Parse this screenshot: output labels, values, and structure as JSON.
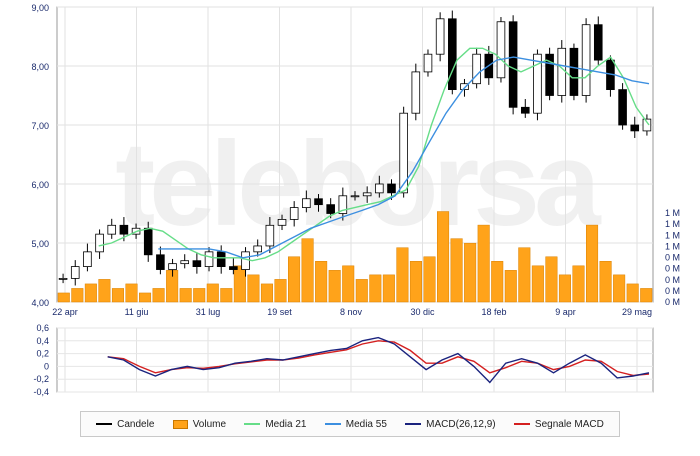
{
  "chart_data": [
    {
      "type": "candlestick",
      "name_in_legend": "Candele",
      "x_tick_labels": [
        "22 apr",
        "11 giu",
        "31 lug",
        "19 set",
        "8 nov",
        "30 dic",
        "18 feb",
        "9 apr",
        "29 mag"
      ],
      "y_tick_labels": [
        "9,00",
        "8,00",
        "7,00",
        "6,00",
        "5,00",
        "4,00"
      ],
      "ylim": [
        4.0,
        9.0
      ],
      "grid": true,
      "price_series_sampled": [
        4.4,
        4.6,
        4.85,
        5.15,
        5.3,
        5.15,
        5.25,
        4.8,
        4.55,
        4.65,
        4.7,
        4.6,
        4.85,
        4.6,
        4.55,
        4.85,
        4.95,
        5.3,
        5.4,
        5.6,
        5.75,
        5.65,
        5.5,
        5.8,
        5.8,
        5.85,
        6.0,
        5.85,
        7.2,
        7.9,
        8.2,
        8.8,
        7.6,
        7.7,
        8.2,
        7.8,
        8.75,
        7.3,
        7.2,
        8.2,
        7.5,
        8.3,
        7.5,
        8.7,
        8.1,
        7.6,
        7.0,
        6.9,
        7.1
      ]
    },
    {
      "type": "line",
      "series": [
        {
          "name": "Media 21",
          "color": "#66dd88",
          "values": [
            4.95,
            5.0,
            5.1,
            5.2,
            5.25,
            5.2,
            5.05,
            4.9,
            4.8,
            4.75,
            4.75,
            4.75,
            4.7,
            4.75,
            4.85,
            5.0,
            5.15,
            5.3,
            5.45,
            5.55,
            5.6,
            5.65,
            5.7,
            5.8,
            5.9,
            6.3,
            7.0,
            7.6,
            8.1,
            8.3,
            8.3,
            8.2,
            8.0,
            7.9,
            8.0,
            8.1,
            8.0,
            7.8,
            7.8,
            8.0,
            8.15,
            7.8,
            7.3,
            7.0
          ]
        },
        {
          "name": "Media 55",
          "color": "#3c8fe0",
          "values": [
            4.9,
            4.9,
            4.9,
            4.9,
            4.85,
            4.75,
            4.8,
            4.95,
            5.1,
            5.25,
            5.35,
            5.45,
            5.55,
            5.65,
            5.8,
            6.2,
            6.7,
            7.2,
            7.6,
            7.9,
            8.1,
            8.15,
            8.1,
            8.05,
            8.0,
            7.95,
            7.9,
            7.85,
            7.75,
            7.7
          ]
        }
      ]
    },
    {
      "type": "bar",
      "name": "Volume",
      "color": "#ffa31a",
      "y_tick_labels": [
        "1 M",
        "1 M",
        "1 M",
        "1 M",
        "0 M",
        "0 M",
        "0 M",
        "0 M",
        "0 M"
      ],
      "values": [
        0.1,
        0.15,
        0.2,
        0.25,
        0.15,
        0.2,
        0.1,
        0.15,
        0.35,
        0.15,
        0.15,
        0.2,
        0.15,
        0.4,
        0.3,
        0.2,
        0.25,
        0.5,
        0.7,
        0.45,
        0.35,
        0.4,
        0.25,
        0.3,
        0.3,
        0.6,
        0.45,
        0.5,
        1.0,
        0.7,
        0.65,
        0.85,
        0.45,
        0.35,
        0.6,
        0.4,
        0.5,
        0.3,
        0.4,
        0.85,
        0.45,
        0.3,
        0.2,
        0.15
      ]
    },
    {
      "type": "line",
      "name": "MACD panel",
      "y_tick_labels": [
        "0,6",
        "0,4",
        "0,2",
        "0",
        "-0,2",
        "-0,4"
      ],
      "ylim": [
        -0.4,
        0.6
      ],
      "series": [
        {
          "name": "MACD(26,12,9)",
          "color": "#1a237e",
          "values": [
            0.15,
            0.1,
            -0.05,
            -0.15,
            -0.05,
            0.0,
            -0.05,
            -0.02,
            0.05,
            0.08,
            0.12,
            0.1,
            0.15,
            0.2,
            0.25,
            0.28,
            0.4,
            0.45,
            0.35,
            0.15,
            -0.05,
            0.1,
            0.2,
            0.0,
            -0.25,
            0.05,
            0.12,
            0.05,
            -0.1,
            0.05,
            0.18,
            0.05,
            -0.18,
            -0.15,
            -0.1
          ]
        },
        {
          "name": "Segnale MACD",
          "color": "#d42020",
          "values": [
            0.15,
            0.12,
            0.0,
            -0.1,
            -0.05,
            -0.02,
            -0.03,
            0.0,
            0.04,
            0.07,
            0.1,
            0.1,
            0.13,
            0.18,
            0.22,
            0.26,
            0.35,
            0.4,
            0.38,
            0.25,
            0.05,
            0.05,
            0.15,
            0.08,
            -0.1,
            -0.02,
            0.08,
            0.05,
            -0.05,
            0.0,
            0.1,
            0.08,
            -0.08,
            -0.14,
            -0.12
          ]
        }
      ]
    }
  ],
  "legend": {
    "items": [
      {
        "label": "Candele",
        "kind": "line",
        "color": "#000000"
      },
      {
        "label": "Volume",
        "kind": "box",
        "color": "#ffa31a"
      },
      {
        "label": "Media 21",
        "kind": "line",
        "color": "#66dd88"
      },
      {
        "label": "Media 55",
        "kind": "line",
        "color": "#3c8fe0"
      },
      {
        "label": "MACD(26,12,9)",
        "kind": "line",
        "color": "#1a237e"
      },
      {
        "label": "Segnale MACD",
        "kind": "line",
        "color": "#d42020"
      }
    ]
  }
}
